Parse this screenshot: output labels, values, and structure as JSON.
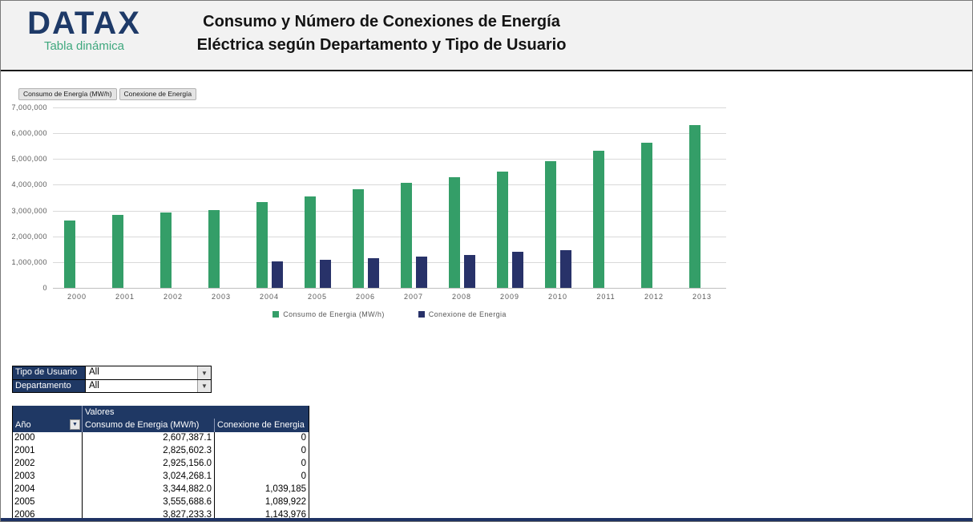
{
  "header": {
    "logo": "DATAX",
    "logo_subtitle": "Tabla dinámica",
    "title_line1": "Consumo y Número de Conexiones de Energía",
    "title_line2": "Eléctrica según Departamento y Tipo de Usuario"
  },
  "colors": {
    "consumo_green": "#349e68",
    "conexione_navy": "#283269",
    "header_navy": "#1f3864",
    "logo_navy": "#1e3a68",
    "logo_green": "#3fa87e",
    "axis_text_gray": "#595959",
    "gridline_gray": "#d9d9d9",
    "band_gray": "#f2f2f2"
  },
  "chart": {
    "field_buttons": [
      "Consumo de Energía (MW/h)",
      "Conexione de Energía"
    ],
    "legend": [
      {
        "label": "Consumo de Energia (MW/h)",
        "color": "#349e68"
      },
      {
        "label": "Conexione de Energia",
        "color": "#283269"
      }
    ]
  },
  "chart_data": {
    "type": "bar",
    "categories": [
      "2000",
      "2001",
      "2002",
      "2003",
      "2004",
      "2005",
      "2006",
      "2007",
      "2008",
      "2009",
      "2010",
      "2011",
      "2012",
      "2013"
    ],
    "series": [
      {
        "name": "Consumo de Energia (MW/h)",
        "color": "#349e68",
        "values": [
          2607387.1,
          2825602.3,
          2925156.0,
          3024268.1,
          3344882.0,
          3555688.6,
          3827233.3,
          4070000,
          4300000,
          4510000,
          4920000,
          5310000,
          5640000,
          6320000
        ]
      },
      {
        "name": "Conexione de Energia",
        "color": "#283269",
        "values": [
          0,
          0,
          0,
          0,
          1039185,
          1089922,
          1143976,
          1210000,
          1280000,
          1390000,
          1460000,
          0,
          0,
          0
        ]
      }
    ],
    "ylim": [
      0,
      7000000
    ],
    "ytick_interval": 1000000,
    "ytick_labels": [
      "0",
      "1,000,000",
      "2,000,000",
      "3,000,000",
      "4,000,000",
      "5,000,000",
      "6,000,000",
      "7,000,000"
    ],
    "grid": true,
    "legend_position": "bottom"
  },
  "filters": [
    {
      "label": "Tipo de Usuario",
      "value": "All"
    },
    {
      "label": "Departamento",
      "value": "All"
    }
  ],
  "table": {
    "valores_header": "Valores",
    "row_header": "Año",
    "columns": [
      "Consumo de Energia (MW/h)",
      "Conexione de Energia"
    ],
    "rows": [
      {
        "year": "2000",
        "consumo": "2,607,387.1",
        "conexione": "0"
      },
      {
        "year": "2001",
        "consumo": "2,825,602.3",
        "conexione": "0"
      },
      {
        "year": "2002",
        "consumo": "2,925,156.0",
        "conexione": "0"
      },
      {
        "year": "2003",
        "consumo": "3,024,268.1",
        "conexione": "0"
      },
      {
        "year": "2004",
        "consumo": "3,344,882.0",
        "conexione": "1,039,185"
      },
      {
        "year": "2005",
        "consumo": "3,555,688.6",
        "conexione": "1,089,922"
      },
      {
        "year": "2006",
        "consumo": "3,827,233.3",
        "conexione": "1,143,976"
      }
    ]
  },
  "icons": {
    "dropdown_arrow": "▼"
  }
}
